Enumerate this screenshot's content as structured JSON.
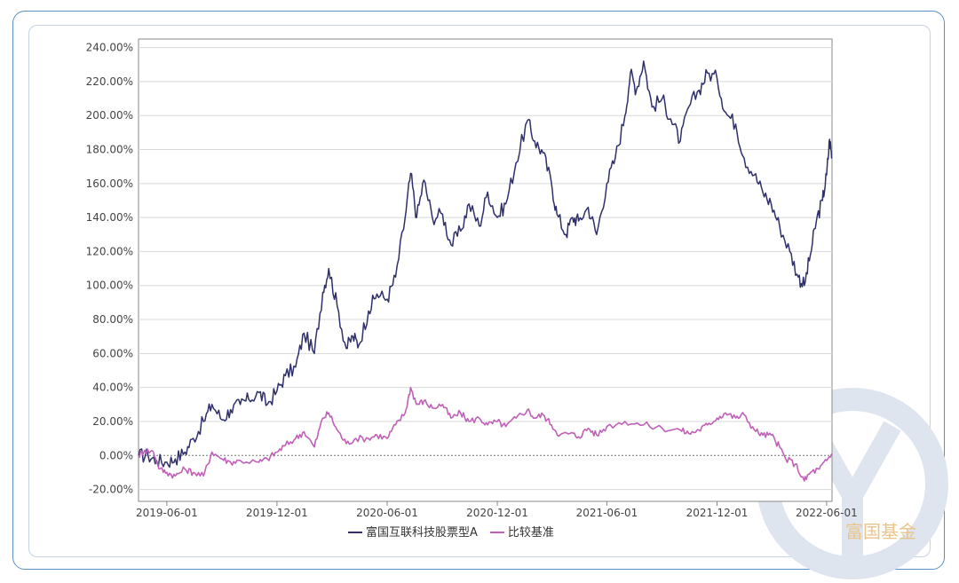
{
  "chart_data": {
    "type": "line",
    "title": "",
    "xlabel": "",
    "ylabel": "",
    "x_ticks": [
      "2019-06-01",
      "2019-12-01",
      "2020-06-01",
      "2020-12-01",
      "2021-06-01",
      "2021-12-01",
      "2022-06-01"
    ],
    "xlim": [
      "2019-04-15",
      "2022-06-10"
    ],
    "y_ticks": [
      "240.00%",
      "220.00%",
      "200.00%",
      "180.00%",
      "160.00%",
      "140.00%",
      "120.00%",
      "100.00%",
      "80.00%",
      "60.00%",
      "40.00%",
      "20.00%",
      "0.00%",
      "-20.00%"
    ],
    "ylim": [
      -27,
      245
    ],
    "grid": true,
    "legend_position": "bottom",
    "series": [
      {
        "name": "富国互联科技股票型A",
        "color": "#2e2f6b",
        "points": [
          [
            "2019-04-15",
            0
          ],
          [
            "2019-05-01",
            0
          ],
          [
            "2019-05-15",
            -3
          ],
          [
            "2019-06-01",
            -4
          ],
          [
            "2019-06-15",
            -2
          ],
          [
            "2019-07-01",
            2
          ],
          [
            "2019-07-15",
            10
          ],
          [
            "2019-08-01",
            20
          ],
          [
            "2019-08-15",
            30
          ],
          [
            "2019-09-01",
            21
          ],
          [
            "2019-09-15",
            27
          ],
          [
            "2019-10-01",
            30
          ],
          [
            "2019-10-15",
            33
          ],
          [
            "2019-11-01",
            37
          ],
          [
            "2019-11-15",
            30
          ],
          [
            "2019-12-01",
            38
          ],
          [
            "2019-12-15",
            47
          ],
          [
            "2020-01-01",
            52
          ],
          [
            "2020-01-15",
            72
          ],
          [
            "2020-02-01",
            60
          ],
          [
            "2020-02-15",
            96
          ],
          [
            "2020-02-25",
            110
          ],
          [
            "2020-03-10",
            88
          ],
          [
            "2020-03-25",
            63
          ],
          [
            "2020-04-05",
            70
          ],
          [
            "2020-04-15",
            65
          ],
          [
            "2020-05-01",
            85
          ],
          [
            "2020-05-15",
            95
          ],
          [
            "2020-06-01",
            92
          ],
          [
            "2020-06-15",
            105
          ],
          [
            "2020-07-01",
            140
          ],
          [
            "2020-07-10",
            166
          ],
          [
            "2020-07-20",
            140
          ],
          [
            "2020-08-01",
            162
          ],
          [
            "2020-08-15",
            140
          ],
          [
            "2020-09-01",
            142
          ],
          [
            "2020-09-15",
            124
          ],
          [
            "2020-10-01",
            132
          ],
          [
            "2020-10-15",
            148
          ],
          [
            "2020-11-01",
            135
          ],
          [
            "2020-11-15",
            155
          ],
          [
            "2020-12-01",
            140
          ],
          [
            "2020-12-15",
            148
          ],
          [
            "2021-01-01",
            172
          ],
          [
            "2021-01-20",
            197
          ],
          [
            "2021-02-01",
            185
          ],
          [
            "2021-02-15",
            178
          ],
          [
            "2021-03-01",
            160
          ],
          [
            "2021-03-10",
            142
          ],
          [
            "2021-03-25",
            130
          ],
          [
            "2021-04-05",
            140
          ],
          [
            "2021-04-15",
            138
          ],
          [
            "2021-05-01",
            146
          ],
          [
            "2021-05-15",
            130
          ],
          [
            "2021-06-01",
            160
          ],
          [
            "2021-06-15",
            175
          ],
          [
            "2021-07-01",
            200
          ],
          [
            "2021-07-10",
            225
          ],
          [
            "2021-07-20",
            215
          ],
          [
            "2021-08-01",
            232
          ],
          [
            "2021-08-15",
            205
          ],
          [
            "2021-09-01",
            210
          ],
          [
            "2021-09-15",
            198
          ],
          [
            "2021-10-01",
            185
          ],
          [
            "2021-10-15",
            205
          ],
          [
            "2021-11-01",
            215
          ],
          [
            "2021-11-15",
            225
          ],
          [
            "2021-12-01",
            222
          ],
          [
            "2021-12-15",
            202
          ],
          [
            "2022-01-01",
            195
          ],
          [
            "2022-01-15",
            175
          ],
          [
            "2022-02-01",
            165
          ],
          [
            "2022-02-15",
            155
          ],
          [
            "2022-03-01",
            148
          ],
          [
            "2022-03-15",
            135
          ],
          [
            "2022-04-01",
            120
          ],
          [
            "2022-04-15",
            105
          ],
          [
            "2022-04-25",
            100
          ],
          [
            "2022-05-05",
            118
          ],
          [
            "2022-05-15",
            138
          ],
          [
            "2022-05-25",
            150
          ],
          [
            "2022-06-01",
            165
          ],
          [
            "2022-06-06",
            186
          ],
          [
            "2022-06-10",
            175
          ]
        ]
      },
      {
        "name": "比较基准",
        "color": "#c060b8",
        "points": [
          [
            "2019-04-15",
            0
          ],
          [
            "2019-04-25",
            3
          ],
          [
            "2019-05-10",
            2
          ],
          [
            "2019-05-20",
            -8
          ],
          [
            "2019-06-01",
            -10
          ],
          [
            "2019-06-15",
            -12
          ],
          [
            "2019-07-01",
            -8
          ],
          [
            "2019-07-15",
            -10
          ],
          [
            "2019-08-01",
            -12
          ],
          [
            "2019-08-15",
            2
          ],
          [
            "2019-09-01",
            -2
          ],
          [
            "2019-09-15",
            -4
          ],
          [
            "2019-10-01",
            -3
          ],
          [
            "2019-11-01",
            -4
          ],
          [
            "2019-11-15",
            -2
          ],
          [
            "2019-12-01",
            2
          ],
          [
            "2019-12-15",
            6
          ],
          [
            "2020-01-01",
            10
          ],
          [
            "2020-01-15",
            14
          ],
          [
            "2020-02-01",
            5
          ],
          [
            "2020-02-15",
            22
          ],
          [
            "2020-02-25",
            25
          ],
          [
            "2020-03-10",
            15
          ],
          [
            "2020-03-25",
            7
          ],
          [
            "2020-04-10",
            10
          ],
          [
            "2020-05-01",
            10
          ],
          [
            "2020-05-15",
            12
          ],
          [
            "2020-06-01",
            10
          ],
          [
            "2020-06-15",
            18
          ],
          [
            "2020-07-01",
            25
          ],
          [
            "2020-07-10",
            40
          ],
          [
            "2020-07-20",
            30
          ],
          [
            "2020-08-01",
            32
          ],
          [
            "2020-08-15",
            28
          ],
          [
            "2020-09-01",
            30
          ],
          [
            "2020-09-15",
            22
          ],
          [
            "2020-10-01",
            25
          ],
          [
            "2020-10-15",
            20
          ],
          [
            "2020-11-01",
            22
          ],
          [
            "2020-11-15",
            18
          ],
          [
            "2020-12-01",
            20
          ],
          [
            "2020-12-15",
            17
          ],
          [
            "2021-01-01",
            22
          ],
          [
            "2021-01-20",
            27
          ],
          [
            "2021-02-01",
            22
          ],
          [
            "2021-02-15",
            24
          ],
          [
            "2021-03-01",
            18
          ],
          [
            "2021-03-15",
            12
          ],
          [
            "2021-04-01",
            13
          ],
          [
            "2021-04-15",
            11
          ],
          [
            "2021-05-01",
            16
          ],
          [
            "2021-05-15",
            12
          ],
          [
            "2021-06-01",
            17
          ],
          [
            "2021-07-01",
            20
          ],
          [
            "2021-08-01",
            18
          ],
          [
            "2021-09-01",
            16
          ],
          [
            "2021-10-01",
            15
          ],
          [
            "2021-10-15",
            13
          ],
          [
            "2021-11-01",
            15
          ],
          [
            "2021-11-15",
            18
          ],
          [
            "2021-12-01",
            22
          ],
          [
            "2021-12-15",
            25
          ],
          [
            "2022-01-01",
            22
          ],
          [
            "2022-01-15",
            24
          ],
          [
            "2022-02-01",
            15
          ],
          [
            "2022-02-15",
            12
          ],
          [
            "2022-03-01",
            12
          ],
          [
            "2022-03-15",
            5
          ],
          [
            "2022-03-25",
            -2
          ],
          [
            "2022-04-10",
            -5
          ],
          [
            "2022-04-25",
            -15
          ],
          [
            "2022-05-05",
            -10
          ],
          [
            "2022-05-20",
            -8
          ],
          [
            "2022-06-01",
            -3
          ],
          [
            "2022-06-10",
            1
          ]
        ]
      }
    ]
  },
  "watermark": {
    "text": "富国基金",
    "color": "#e8c48a",
    "ring_color": "#dfe5ef"
  },
  "colors": {
    "outer_border": "#5c8fc6",
    "inner_border": "#c6d3e3",
    "grid": "#d8d8d8",
    "axis": "#888888",
    "zero_line": "#777777"
  }
}
